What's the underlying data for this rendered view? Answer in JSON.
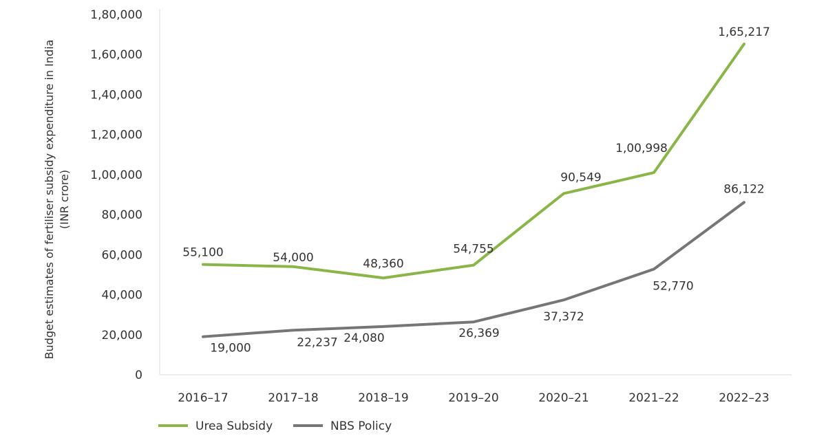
{
  "chart_data": {
    "type": "line",
    "ylabel_lines": [
      "Budget estimates of fertiliser subsidy expenditure in India",
      "(INR crore)"
    ],
    "categories": [
      "2016–17",
      "2017–18",
      "2018–19",
      "2019–20",
      "2020–21",
      "2021–22",
      "2022–23"
    ],
    "yticks": [
      "0",
      "20,000",
      "40,000",
      "60,000",
      "80,000",
      "1,00,000",
      "1,20,000",
      "1,40,000",
      "1,60,000",
      "1,80,000"
    ],
    "ylim": [
      0,
      180000
    ],
    "grid": false,
    "legend_position": "bottom-left",
    "series": [
      {
        "name": "Urea Subsidy",
        "color": "#8ab547",
        "values": [
          55100,
          54000,
          48360,
          54755,
          90549,
          100998,
          165217
        ],
        "labels": [
          "55,100",
          "54,000",
          "48,360",
          "54,755",
          "90,549",
          "1,00,998",
          "1,65,217"
        ]
      },
      {
        "name": "NBS Policy",
        "color": "#767676",
        "values": [
          19000,
          22237,
          24080,
          26369,
          37372,
          52770,
          86122
        ],
        "labels": [
          "19,000",
          "22,237",
          "24,080",
          "26,369",
          "37,372",
          "52,770",
          "86,122"
        ]
      }
    ]
  }
}
